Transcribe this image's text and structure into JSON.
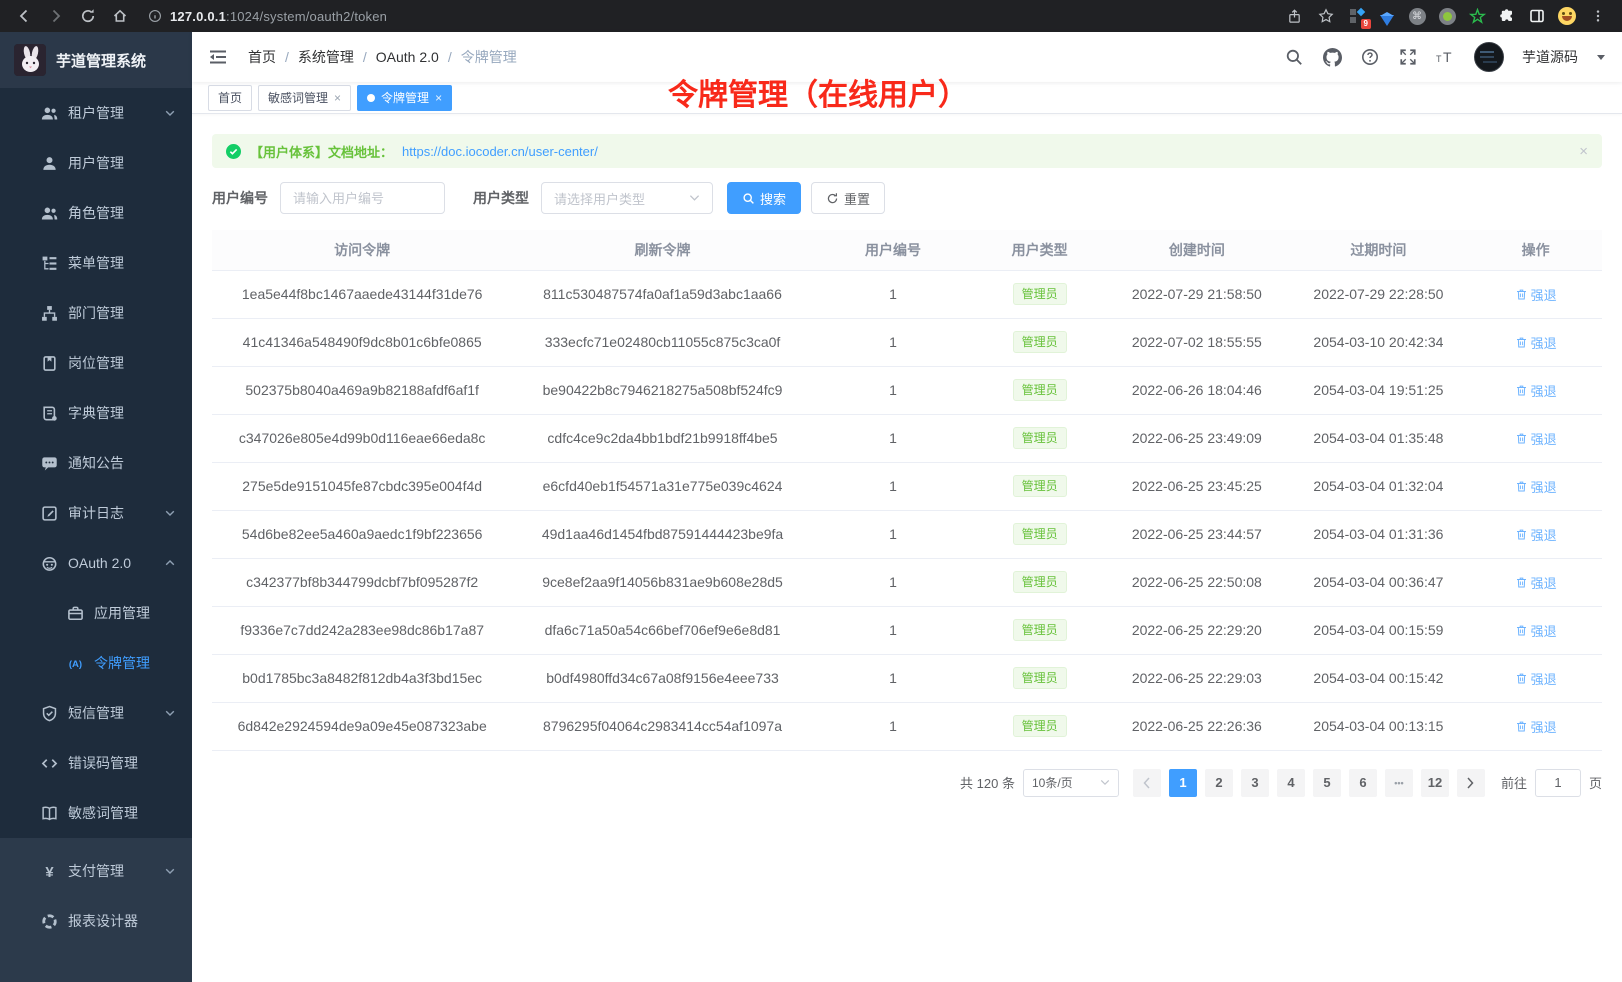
{
  "colors": {
    "accent": "#409eff",
    "annotation_red": "#f8291a",
    "alert_green": "#67c23a",
    "alert_bg": "#f0f9eb",
    "badge_green": "#67c23a",
    "action_blue": "#6db3ff",
    "sidebar_bg": "#1e2c3c"
  },
  "browser": {
    "url_host": "127.0.0.1",
    "url_rest": ":1024/system/oauth2/token",
    "extension_badge": "9"
  },
  "app": {
    "title": "芋道管理系统"
  },
  "sidebar": {
    "items": [
      {
        "id": "tenant",
        "label": "租户管理",
        "icon": "users-icon",
        "chevron": "down"
      },
      {
        "id": "user",
        "label": "用户管理",
        "icon": "user-icon"
      },
      {
        "id": "role",
        "label": "角色管理",
        "icon": "users-icon"
      },
      {
        "id": "menu",
        "label": "菜单管理",
        "icon": "menu-tree-icon"
      },
      {
        "id": "dept",
        "label": "部门管理",
        "icon": "org-icon"
      },
      {
        "id": "post",
        "label": "岗位管理",
        "icon": "badge-icon"
      },
      {
        "id": "dict",
        "label": "字典管理",
        "icon": "dict-icon"
      },
      {
        "id": "notice",
        "label": "通知公告",
        "icon": "comment-icon"
      },
      {
        "id": "audit-log",
        "label": "审计日志",
        "icon": "log-icon",
        "chevron": "down"
      },
      {
        "id": "oauth2",
        "label": "OAuth 2.0",
        "icon": "robot-icon",
        "chevron": "up"
      },
      {
        "id": "oauth2-app",
        "label": "应用管理",
        "icon": "briefcase-icon",
        "sub": true
      },
      {
        "id": "oauth2-token",
        "label": "令牌管理",
        "icon": "token-icon",
        "sub": true,
        "active": true
      },
      {
        "id": "sms",
        "label": "短信管理",
        "icon": "shield-icon",
        "chevron": "down"
      },
      {
        "id": "error-code",
        "label": "错误码管理",
        "icon": "code-icon"
      },
      {
        "id": "sensitive",
        "label": "敏感词管理",
        "icon": "book-icon"
      }
    ],
    "bottom_items": [
      {
        "id": "pay",
        "label": "支付管理",
        "icon": "yen-icon",
        "chevron": "down"
      },
      {
        "id": "report",
        "label": "报表设计器",
        "icon": "report-icon"
      }
    ]
  },
  "header": {
    "breadcrumb": [
      "首页",
      "系统管理",
      "OAuth 2.0",
      "令牌管理"
    ],
    "user_name": "芋道源码",
    "right_icons": [
      "search-icon",
      "github-icon",
      "help-icon",
      "fullscreen-icon",
      "font-size-icon"
    ]
  },
  "tabs": [
    {
      "label": "首页"
    },
    {
      "label": "敏感词管理",
      "closable": true
    },
    {
      "label": "令牌管理",
      "closable": true,
      "active": true
    }
  ],
  "annotation": {
    "title": "令牌管理（在线用户）"
  },
  "alert": {
    "text": "【用户体系】文档地址：",
    "link": "https://doc.iocoder.cn/user-center/",
    "close": "×"
  },
  "filters": {
    "user_id_label": "用户编号",
    "user_id_placeholder": "请输入用户编号",
    "user_type_label": "用户类型",
    "user_type_placeholder": "请选择用户类型",
    "search_label": "搜索",
    "reset_label": "重置"
  },
  "table": {
    "columns": [
      "访问令牌",
      "刷新令牌",
      "用户编号",
      "用户类型",
      "创建时间",
      "过期时间",
      "操作"
    ],
    "action_label": "强退",
    "rows": [
      {
        "access": "1ea5e44f8bc1467aaede43144f31de76",
        "refresh": "811c530487574fa0af1a59d3abc1aa66",
        "user_id": "1",
        "user_type": "管理员",
        "created": "2022-07-29 21:58:50",
        "expires": "2022-07-29 22:28:50"
      },
      {
        "access": "41c41346a548490f9dc8b01c6bfe0865",
        "refresh": "333ecfc71e02480cb11055c875c3ca0f",
        "user_id": "1",
        "user_type": "管理员",
        "created": "2022-07-02 18:55:55",
        "expires": "2054-03-10 20:42:34"
      },
      {
        "access": "502375b8040a469a9b82188afdf6af1f",
        "refresh": "be90422b8c7946218275a508bf524fc9",
        "user_id": "1",
        "user_type": "管理员",
        "created": "2022-06-26 18:04:46",
        "expires": "2054-03-04 19:51:25"
      },
      {
        "access": "c347026e805e4d99b0d116eae66eda8c",
        "refresh": "cdfc4ce9c2da4bb1bdf21b9918ff4be5",
        "user_id": "1",
        "user_type": "管理员",
        "created": "2022-06-25 23:49:09",
        "expires": "2054-03-04 01:35:48"
      },
      {
        "access": "275e5de9151045fe87cbdc395e004f4d",
        "refresh": "e6cfd40eb1f54571a31e775e039c4624",
        "user_id": "1",
        "user_type": "管理员",
        "created": "2022-06-25 23:45:25",
        "expires": "2054-03-04 01:32:04"
      },
      {
        "access": "54d6be82ee5a460a9aedc1f9bf223656",
        "refresh": "49d1aa46d1454fbd87591444423be9fa",
        "user_id": "1",
        "user_type": "管理员",
        "created": "2022-06-25 23:44:57",
        "expires": "2054-03-04 01:31:36"
      },
      {
        "access": "c342377bf8b344799dcbf7bf095287f2",
        "refresh": "9ce8ef2aa9f14056b831ae9b608e28d5",
        "user_id": "1",
        "user_type": "管理员",
        "created": "2022-06-25 22:50:08",
        "expires": "2054-03-04 00:36:47"
      },
      {
        "access": "f9336e7c7dd242a283ee98dc86b17a87",
        "refresh": "dfa6c71a50a54c66bef706ef9e6e8d81",
        "user_id": "1",
        "user_type": "管理员",
        "created": "2022-06-25 22:29:20",
        "expires": "2054-03-04 00:15:59"
      },
      {
        "access": "b0d1785bc3a8482f812db4a3f3bd15ec",
        "refresh": "b0df4980ffd34c67a08f9156e4eee733",
        "user_id": "1",
        "user_type": "管理员",
        "created": "2022-06-25 22:29:03",
        "expires": "2054-03-04 00:15:42"
      },
      {
        "access": "6d842e2924594de9a09e45e087323abe",
        "refresh": "8796295f04064c2983414cc54af1097a",
        "user_id": "1",
        "user_type": "管理员",
        "created": "2022-06-25 22:26:36",
        "expires": "2054-03-04 00:13:15"
      }
    ]
  },
  "pagination": {
    "total": "共 120 条",
    "page_size": "10条/页",
    "pages": [
      "1",
      "2",
      "3",
      "4",
      "5",
      "6",
      "...",
      "12"
    ],
    "active_page": "1",
    "goto_label": "前往",
    "goto_value": "1",
    "page_label": "页"
  }
}
